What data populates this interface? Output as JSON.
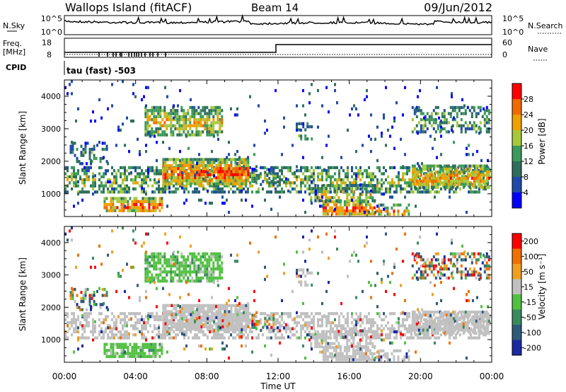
{
  "header": {
    "station": "Wallops Island (fitACF)",
    "beam": "Beam 14",
    "date": "09/Jun/2012"
  },
  "top_panels": {
    "nsky_label": "N.Sky",
    "nsearch_label": "N.Search",
    "nsky_ticks": [
      "10^5",
      "10^0"
    ],
    "nsearch_ticks": [
      "10^5",
      "10^0"
    ],
    "freq_label_1": "Freq.",
    "freq_label_2": "[MHz]",
    "freq_ticks": [
      "18",
      "8"
    ],
    "nave_label": "Nave",
    "nave_ticks": [
      "60",
      "0"
    ],
    "cpid_label": "CPID",
    "cpid_text": "tau (fast) -503"
  },
  "colors": {
    "power": [
      "#0000ff",
      "#1f4aa8",
      "#2e6e5c",
      "#3c9a5a",
      "#a8c83c",
      "#f0a000",
      "#f06a00",
      "#ff0000"
    ],
    "velocity": [
      "#1a2aa0",
      "#2e5a7a",
      "#3a8a60",
      "#50c040",
      "#c0c0c0",
      "#f0a020",
      "#f07000",
      "#ff0000"
    ]
  },
  "chart_data": [
    {
      "type": "heatmap",
      "name": "power",
      "xlabel": "",
      "ylabel": "Slant Range [km]",
      "xlim": [
        0,
        24
      ],
      "ylim": [
        300,
        4500
      ],
      "yticks": [
        "4000",
        "3000",
        "2000",
        "1000"
      ],
      "colorbar_label": "Power [dB]",
      "colorbar_ticks": [
        "28",
        "24",
        "20",
        "16",
        "12",
        "8",
        "4"
      ]
    },
    {
      "type": "heatmap",
      "name": "velocity",
      "xlabel": "Time UT",
      "ylabel": "Slant Range [km]",
      "xlim": [
        0,
        24
      ],
      "ylim": [
        300,
        4500
      ],
      "xticks": [
        "00:00",
        "04:00",
        "08:00",
        "12:00",
        "16:00",
        "20:00",
        "00:00"
      ],
      "yticks": [
        "4000",
        "3000",
        "2000",
        "1000"
      ],
      "colorbar_label": "Velocity [m s⁻¹]",
      "colorbar_ticks": [
        "200",
        "100",
        "50",
        "15",
        "-15",
        "-50",
        "-100",
        "-200"
      ]
    }
  ]
}
